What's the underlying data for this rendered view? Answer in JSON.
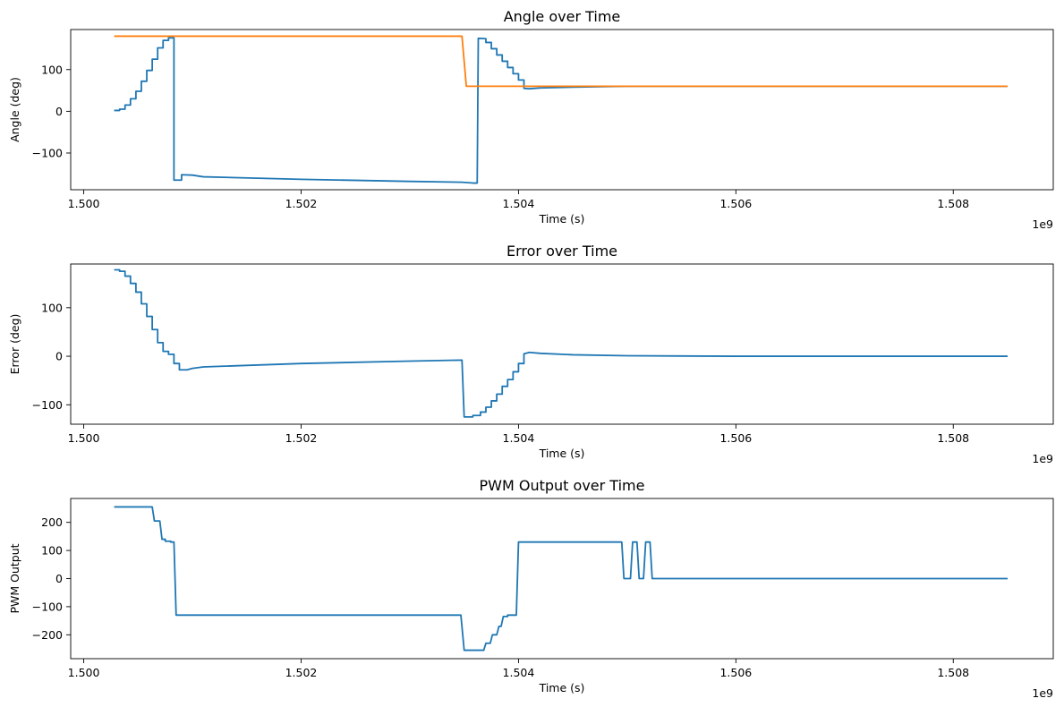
{
  "chart_data": [
    {
      "type": "line",
      "title": "Angle over Time",
      "xlabel": "Time (s)",
      "ylabel": "Angle (deg)",
      "x_offset_label": "1e9",
      "xlim": [
        1.49988,
        1.50892
      ],
      "ylim": [
        -188,
        196
      ],
      "xticks": [
        1.5,
        1.502,
        1.504,
        1.506,
        1.508
      ],
      "xtick_labels": [
        "1.500",
        "1.502",
        "1.504",
        "1.506",
        "1.508"
      ],
      "yticks": [
        100,
        0,
        -100
      ],
      "ytick_labels": [
        "100",
        "0",
        "−100"
      ],
      "grid": false,
      "series": [
        {
          "color": "#1f77b4",
          "points": [
            [
              1.50028,
              2
            ],
            [
              1.50033,
              2
            ],
            [
              1.50033,
              5
            ],
            [
              1.50038,
              5
            ],
            [
              1.50038,
              15
            ],
            [
              1.50043,
              15
            ],
            [
              1.50043,
              30
            ],
            [
              1.50048,
              30
            ],
            [
              1.50048,
              48
            ],
            [
              1.50053,
              48
            ],
            [
              1.50053,
              72
            ],
            [
              1.50058,
              72
            ],
            [
              1.50058,
              98
            ],
            [
              1.50063,
              98
            ],
            [
              1.50063,
              125
            ],
            [
              1.50068,
              125
            ],
            [
              1.50068,
              152
            ],
            [
              1.50073,
              152
            ],
            [
              1.50073,
              170
            ],
            [
              1.50078,
              170
            ],
            [
              1.50078,
              176
            ],
            [
              1.50083,
              176
            ],
            [
              1.50083,
              -165
            ],
            [
              1.5009,
              -165
            ],
            [
              1.5009,
              -152
            ],
            [
              1.501,
              -153
            ],
            [
              1.5011,
              -157
            ],
            [
              1.502,
              -163
            ],
            [
              1.503,
              -168
            ],
            [
              1.50348,
              -170
            ],
            [
              1.50358,
              -172
            ],
            [
              1.50362,
              -172
            ],
            [
              1.50363,
              175
            ],
            [
              1.5037,
              174
            ],
            [
              1.5037,
              165
            ],
            [
              1.50375,
              165
            ],
            [
              1.50375,
              150
            ],
            [
              1.5038,
              150
            ],
            [
              1.5038,
              135
            ],
            [
              1.50385,
              135
            ],
            [
              1.50385,
              120
            ],
            [
              1.5039,
              120
            ],
            [
              1.5039,
              105
            ],
            [
              1.50395,
              105
            ],
            [
              1.50395,
              90
            ],
            [
              1.504,
              90
            ],
            [
              1.504,
              75
            ],
            [
              1.50405,
              75
            ],
            [
              1.50405,
              55
            ],
            [
              1.5041,
              54
            ],
            [
              1.5042,
              56
            ],
            [
              1.5045,
              58
            ],
            [
              1.505,
              60
            ],
            [
              1.506,
              60
            ],
            [
              1.5085,
              60
            ]
          ]
        },
        {
          "color": "#ff7f0e",
          "points": [
            [
              1.50028,
              180
            ],
            [
              1.50348,
              180
            ],
            [
              1.50352,
              60
            ],
            [
              1.5085,
              60
            ]
          ]
        }
      ]
    },
    {
      "type": "line",
      "title": "Error over Time",
      "xlabel": "Time (s)",
      "ylabel": "Error (deg)",
      "x_offset_label": "1e9",
      "xlim": [
        1.49988,
        1.50892
      ],
      "ylim": [
        -140,
        190
      ],
      "xticks": [
        1.5,
        1.502,
        1.504,
        1.506,
        1.508
      ],
      "xtick_labels": [
        "1.500",
        "1.502",
        "1.504",
        "1.506",
        "1.508"
      ],
      "yticks": [
        100,
        0,
        -100
      ],
      "ytick_labels": [
        "100",
        "0",
        "−100"
      ],
      "grid": false,
      "series": [
        {
          "color": "#1f77b4",
          "points": [
            [
              1.50028,
              178
            ],
            [
              1.50033,
              178
            ],
            [
              1.50033,
              175
            ],
            [
              1.50038,
              175
            ],
            [
              1.50038,
              165
            ],
            [
              1.50043,
              165
            ],
            [
              1.50043,
              150
            ],
            [
              1.50048,
              150
            ],
            [
              1.50048,
              132
            ],
            [
              1.50053,
              132
            ],
            [
              1.50053,
              108
            ],
            [
              1.50058,
              108
            ],
            [
              1.50058,
              82
            ],
            [
              1.50063,
              82
            ],
            [
              1.50063,
              55
            ],
            [
              1.50068,
              55
            ],
            [
              1.50068,
              28
            ],
            [
              1.50073,
              28
            ],
            [
              1.50073,
              10
            ],
            [
              1.50078,
              10
            ],
            [
              1.50078,
              4
            ],
            [
              1.50083,
              4
            ],
            [
              1.50083,
              -15
            ],
            [
              1.50088,
              -15
            ],
            [
              1.50088,
              -28
            ],
            [
              1.50095,
              -28
            ],
            [
              1.501,
              -25
            ],
            [
              1.5011,
              -22
            ],
            [
              1.502,
              -15
            ],
            [
              1.503,
              -10
            ],
            [
              1.50348,
              -8
            ],
            [
              1.5035,
              -125
            ],
            [
              1.50358,
              -125
            ],
            [
              1.50358,
              -122
            ],
            [
              1.50365,
              -122
            ],
            [
              1.50365,
              -115
            ],
            [
              1.5037,
              -115
            ],
            [
              1.5037,
              -105
            ],
            [
              1.50375,
              -105
            ],
            [
              1.50375,
              -92
            ],
            [
              1.5038,
              -92
            ],
            [
              1.5038,
              -78
            ],
            [
              1.50385,
              -78
            ],
            [
              1.50385,
              -62
            ],
            [
              1.5039,
              -62
            ],
            [
              1.5039,
              -48
            ],
            [
              1.50395,
              -48
            ],
            [
              1.50395,
              -32
            ],
            [
              1.504,
              -32
            ],
            [
              1.504,
              -15
            ],
            [
              1.50405,
              -15
            ],
            [
              1.50405,
              5
            ],
            [
              1.5041,
              8
            ],
            [
              1.5042,
              6
            ],
            [
              1.5045,
              3
            ],
            [
              1.505,
              1
            ],
            [
              1.506,
              0
            ],
            [
              1.5085,
              0
            ]
          ]
        }
      ]
    },
    {
      "type": "line",
      "title": "PWM Output over Time",
      "xlabel": "Time (s)",
      "ylabel": "PWM Output",
      "x_offset_label": "1e9",
      "xlim": [
        1.49988,
        1.50892
      ],
      "ylim": [
        -285,
        285
      ],
      "xticks": [
        1.5,
        1.502,
        1.504,
        1.506,
        1.508
      ],
      "xtick_labels": [
        "1.500",
        "1.502",
        "1.504",
        "1.506",
        "1.508"
      ],
      "yticks": [
        200,
        100,
        0,
        -100,
        -200
      ],
      "ytick_labels": [
        "200",
        "100",
        "0",
        "−100",
        "−200"
      ],
      "grid": false,
      "series": [
        {
          "color": "#1f77b4",
          "points": [
            [
              1.50028,
              255
            ],
            [
              1.50063,
              255
            ],
            [
              1.50065,
              205
            ],
            [
              1.5007,
              205
            ],
            [
              1.50072,
              140
            ],
            [
              1.50075,
              140
            ],
            [
              1.50075,
              133
            ],
            [
              1.5008,
              133
            ],
            [
              1.5008,
              130
            ],
            [
              1.50083,
              130
            ],
            [
              1.50085,
              -130
            ],
            [
              1.50347,
              -130
            ],
            [
              1.5035,
              -255
            ],
            [
              1.50368,
              -255
            ],
            [
              1.5037,
              -230
            ],
            [
              1.50374,
              -230
            ],
            [
              1.50376,
              -200
            ],
            [
              1.5038,
              -200
            ],
            [
              1.50382,
              -170
            ],
            [
              1.50384,
              -170
            ],
            [
              1.50386,
              -135
            ],
            [
              1.5039,
              -135
            ],
            [
              1.5039,
              -130
            ],
            [
              1.50398,
              -130
            ],
            [
              1.504,
              130
            ],
            [
              1.50495,
              130
            ],
            [
              1.50497,
              0
            ],
            [
              1.50503,
              0
            ],
            [
              1.50505,
              130
            ],
            [
              1.50509,
              130
            ],
            [
              1.50511,
              0
            ],
            [
              1.50515,
              0
            ],
            [
              1.50517,
              130
            ],
            [
              1.50521,
              130
            ],
            [
              1.50523,
              0
            ],
            [
              1.5085,
              0
            ]
          ]
        }
      ]
    }
  ]
}
